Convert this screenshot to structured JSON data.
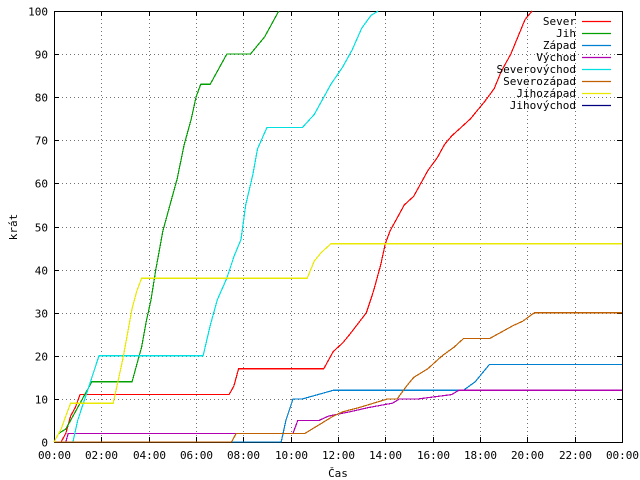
{
  "chart_data": {
    "type": "line",
    "xlabel": "Čas",
    "ylabel": "krát",
    "xlim": [
      0,
      24
    ],
    "ylim": [
      0,
      100
    ],
    "x_ticks": [
      0,
      2,
      4,
      6,
      8,
      10,
      12,
      14,
      16,
      18,
      20,
      22,
      24
    ],
    "x_tick_labels": [
      "00:00",
      "02:00",
      "04:00",
      "06:00",
      "08:00",
      "10:00",
      "12:00",
      "14:00",
      "16:00",
      "18:00",
      "20:00",
      "22:00",
      "00:00"
    ],
    "y_ticks": [
      0,
      10,
      20,
      30,
      40,
      50,
      60,
      70,
      80,
      90,
      100
    ],
    "grid": true,
    "legend_position": "top-right",
    "series": [
      {
        "name": "Sever",
        "color": "#ff0000",
        "x": [
          0.3,
          0.5,
          0.6,
          0.7,
          0.9,
          1.1,
          7.4,
          7.6,
          7.8,
          11.4,
          11.6,
          11.8,
          12.2,
          12.5,
          13.2,
          13.5,
          13.8,
          14.0,
          14.2,
          14.5,
          14.8,
          15.2,
          15.5,
          15.8,
          16.2,
          16.5,
          16.8,
          17.2,
          17.6,
          17.9,
          18.2,
          18.6,
          18.9,
          19.3,
          19.6,
          19.9,
          20.2
        ],
        "y": [
          0,
          2,
          4,
          6,
          8,
          11,
          11,
          13,
          17,
          17,
          19,
          21,
          23,
          25,
          30,
          35,
          41,
          46,
          49,
          52,
          55,
          57,
          60,
          63,
          66,
          69,
          71,
          73,
          75,
          77,
          79,
          82,
          86,
          90,
          94,
          98,
          100
        ]
      },
      {
        "name": "Jih",
        "color": "#00a000",
        "x": [
          0.0,
          0.2,
          0.5,
          0.7,
          1.0,
          1.3,
          1.6,
          3.3,
          3.5,
          3.7,
          3.9,
          4.1,
          4.3,
          4.6,
          4.9,
          5.2,
          5.5,
          5.8,
          6.0,
          6.2,
          6.4,
          6.6,
          6.8,
          7.3,
          7.6,
          7.9,
          8.3,
          8.6,
          8.9,
          9.1,
          9.3,
          9.5
        ],
        "y": [
          0,
          2,
          3,
          5,
          8,
          11,
          14,
          14,
          18,
          22,
          28,
          33,
          40,
          49,
          55,
          61,
          69,
          75,
          80,
          83,
          83,
          83,
          85,
          90,
          90,
          90,
          90,
          92,
          94,
          96,
          98,
          100
        ]
      },
      {
        "name": "Západ",
        "color": "#0080d0",
        "x": [
          0.0,
          9.6,
          9.8,
          10.1,
          10.5,
          11.8,
          12.2,
          14.5,
          14.9,
          15.2,
          15.6,
          17.3,
          17.8,
          18.1,
          18.4,
          18.6,
          24.0
        ],
        "y": [
          0,
          0,
          5,
          10,
          10,
          12,
          12,
          12,
          12,
          12,
          12,
          12,
          14,
          16,
          18,
          18,
          18
        ]
      },
      {
        "name": "Východ",
        "color": "#b000b0",
        "x": [
          0.0,
          0.5,
          0.6,
          10.1,
          10.3,
          11.2,
          11.6,
          12.5,
          13.3,
          14.3,
          14.6,
          15.4,
          16.8,
          17.1,
          24.0
        ],
        "y": [
          0,
          0,
          2,
          2,
          5,
          5,
          6,
          7,
          8,
          9,
          10,
          10,
          11,
          12,
          12
        ]
      },
      {
        "name": "Severovýchod",
        "color": "#00e0e0",
        "x": [
          0.0,
          0.8,
          1.0,
          1.3,
          1.6,
          1.9,
          2.2,
          2.5,
          6.3,
          6.6,
          6.9,
          7.3,
          7.6,
          7.9,
          8.1,
          8.4,
          8.6,
          9.0,
          9.4,
          10.5,
          11.0,
          11.3,
          11.7,
          12.2,
          12.6,
          13.0,
          13.4,
          13.7
        ],
        "y": [
          0,
          0,
          5,
          10,
          15,
          20,
          20,
          20,
          20,
          27,
          33,
          38,
          43,
          47,
          55,
          62,
          68,
          73,
          73,
          73,
          76,
          79,
          83,
          87,
          91,
          96,
          99,
          100
        ]
      },
      {
        "name": "Severozápad",
        "color": "#c06000",
        "x": [
          0.0,
          7.5,
          7.7,
          10.6,
          11.2,
          11.8,
          12.2,
          12.9,
          13.5,
          14.1,
          14.5,
          14.9,
          15.2,
          15.8,
          16.4,
          16.9,
          17.3,
          17.8,
          18.4,
          19.4,
          19.8,
          20.3,
          20.5,
          24.0
        ],
        "y": [
          0,
          0,
          2,
          2,
          4,
          6,
          7,
          8,
          9,
          10,
          10,
          13,
          15,
          17,
          20,
          22,
          24,
          24,
          24,
          27,
          28,
          30,
          30,
          30
        ]
      },
      {
        "name": "Jihozápad",
        "color": "#e8e800",
        "x": [
          0.0,
          0.3,
          0.5,
          0.7,
          1.4,
          2.5,
          2.7,
          2.9,
          3.1,
          3.3,
          3.5,
          3.7,
          4.0,
          4.5,
          5.5,
          6.5,
          7.5,
          8.5,
          10.7,
          11.0,
          11.3,
          11.7,
          12.0,
          24.0
        ],
        "y": [
          0,
          3,
          6,
          9,
          9,
          9,
          14,
          19,
          25,
          31,
          35,
          38,
          38,
          38,
          38,
          38,
          38,
          38,
          38,
          42,
          44,
          46,
          46,
          46
        ]
      },
      {
        "name": "Jihovýchod",
        "color": "#000080",
        "x": [],
        "y": []
      }
    ]
  }
}
